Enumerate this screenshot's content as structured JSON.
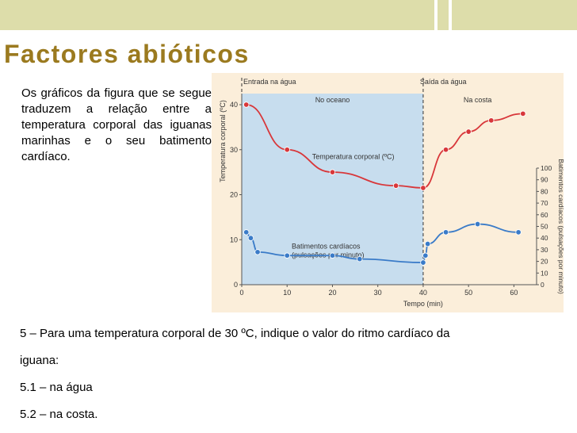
{
  "title": "Factores abióticos",
  "intro": "Os gráficos da figura que se segue traduzem a relação entre a temperatura corporal das iguanas marinhas e o seu batimento cardíaco.",
  "questions": {
    "q5_part1": "5 – Para uma temperatura corporal de 30 ºC, indique o valor do ritmo cardíaco da",
    "q5_part2": "iguana:",
    "q5_1": "5.1 – na água",
    "q5_2": "5.2 – na costa."
  },
  "colors": {
    "title": "#9B7A1F",
    "chart_bg": "#FBEEDA",
    "ocean_bg": "#C7DDEE",
    "temperature": "#D8373A",
    "heart_rate": "#3A7BC8",
    "axis": "#555555"
  },
  "chart_data": {
    "type": "line",
    "xlabel": "Tempo (min)",
    "ylabel": "Temperatura corporal (ºC)",
    "y2label": "Batimentos cardíacos (pulsações por minuto)",
    "xlim": [
      0,
      65
    ],
    "ylim": [
      0,
      40
    ],
    "y2lim": [
      0,
      100
    ],
    "x_ticks": [
      0,
      10,
      20,
      30,
      40,
      50,
      60
    ],
    "y_ticks": [
      0,
      10,
      20,
      30,
      40
    ],
    "y2_ticks": [
      0,
      10,
      20,
      30,
      40,
      50,
      60,
      70,
      80,
      90,
      100
    ],
    "annotations": {
      "entry": "Entrada na água",
      "exit": "Saída da água",
      "ocean": "No oceano",
      "coast": "Na costa"
    },
    "ocean_interval": [
      0,
      40
    ],
    "series": [
      {
        "name": "Temperatura corporal (ºC)",
        "axis": "left",
        "x": [
          1,
          10,
          20,
          34,
          40,
          45,
          50,
          55,
          62
        ],
        "y": [
          40,
          30,
          25,
          22,
          21.5,
          30,
          34,
          36.5,
          38
        ]
      },
      {
        "name": "Batimentos cardíacos (pulsações por minuto)",
        "axis": "right",
        "x": [
          1,
          2,
          3.5,
          10,
          20,
          26,
          40,
          40.5,
          41,
          45,
          52,
          61
        ],
        "y": [
          45,
          40,
          28,
          25,
          25,
          22,
          19,
          25,
          35,
          45,
          52,
          45
        ]
      }
    ]
  }
}
